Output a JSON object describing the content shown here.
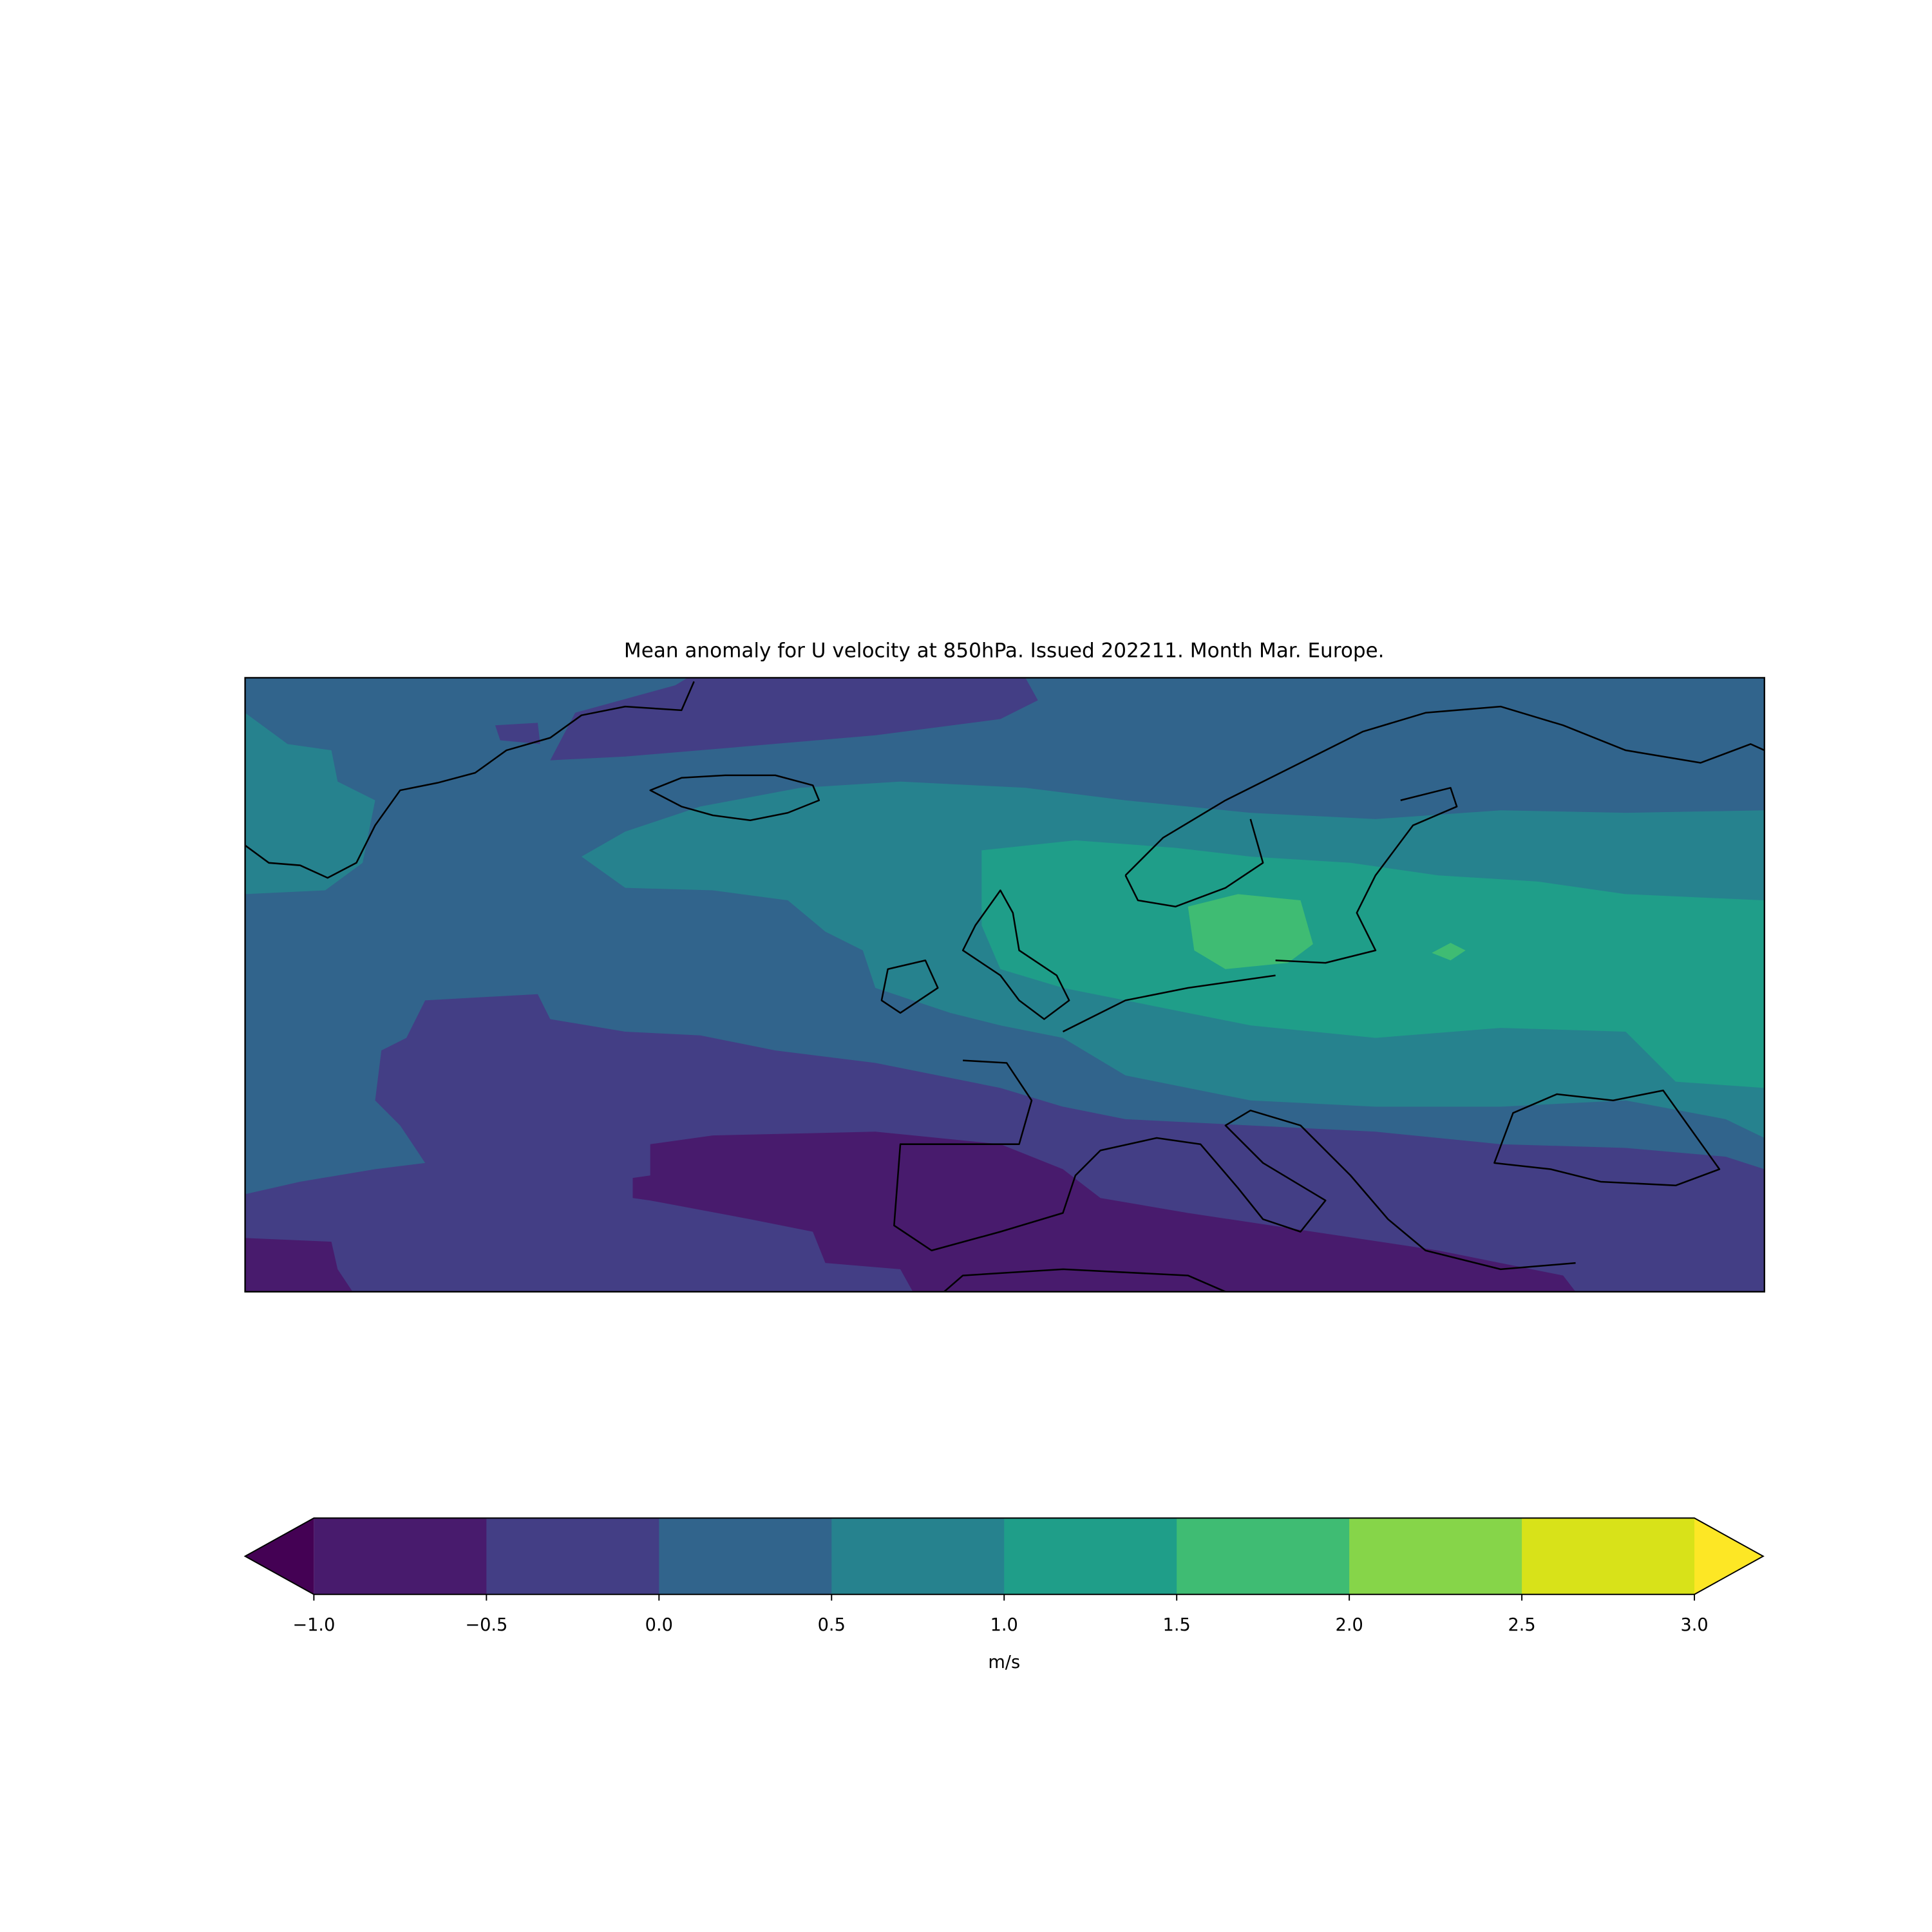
{
  "chart_data": {
    "type": "contour-map",
    "title": "Mean anomaly for U velocity at 850hPa. Issued 202211. Month Mar. Europe.",
    "colorbar": {
      "label": "m/s",
      "lim": [
        -1,
        3
      ],
      "ticks": [
        {
          "value": -1,
          "label": "−1.0"
        },
        {
          "value": -0.5,
          "label": "−0.5"
        },
        {
          "value": 0,
          "label": "0.0"
        },
        {
          "value": 0.5,
          "label": "0.5"
        },
        {
          "value": 1,
          "label": "1.0"
        },
        {
          "value": 1.5,
          "label": "1.5"
        },
        {
          "value": 2,
          "label": "2.0"
        },
        {
          "value": 2.5,
          "label": "2.5"
        },
        {
          "value": 3,
          "label": "3.0"
        }
      ],
      "colors": [
        "#481b6d",
        "#433e85",
        "#31648c",
        "#26828e",
        "#1f9e89",
        "#3fbc73",
        "#86d549",
        "#d8e219"
      ],
      "under_color": "#440154",
      "over_color": "#fde725"
    }
  }
}
